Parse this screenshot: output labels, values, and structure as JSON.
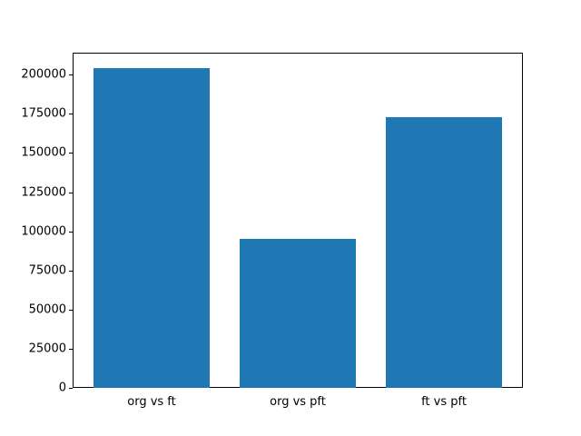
{
  "chart_data": {
    "type": "bar",
    "title": "",
    "xlabel": "",
    "ylabel": "",
    "categories": [
      "org vs ft",
      "org vs pft",
      "ft vs pft"
    ],
    "values": [
      204000,
      95000,
      173000
    ],
    "ylim": [
      0,
      214000
    ],
    "yticks": [
      0,
      25000,
      50000,
      75000,
      100000,
      125000,
      150000,
      175000,
      200000
    ],
    "bar_color": "#1f77b4",
    "axis_color": "#000000",
    "background_color": "#ffffff",
    "grid": false,
    "legend_position": "none"
  }
}
